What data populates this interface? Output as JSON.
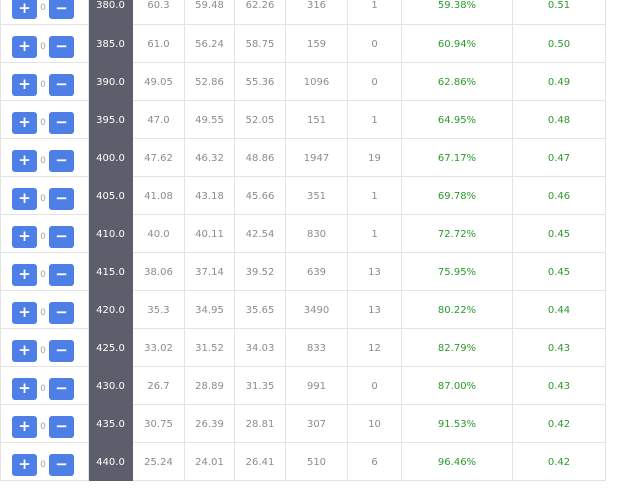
{
  "controls": {
    "plus_symbol": "+",
    "minus_symbol": "−"
  },
  "rows": [
    {
      "qty": "0",
      "strike": "380.0",
      "c1": "60.3",
      "c2": "59.48",
      "c3": "62.26",
      "c4": "316",
      "c5": "1",
      "pct": "59.38%",
      "val": "0.51"
    },
    {
      "qty": "0",
      "strike": "385.0",
      "c1": "61.0",
      "c2": "56.24",
      "c3": "58.75",
      "c4": "159",
      "c5": "0",
      "pct": "60.94%",
      "val": "0.50"
    },
    {
      "qty": "0",
      "strike": "390.0",
      "c1": "49.05",
      "c2": "52.86",
      "c3": "55.36",
      "c4": "1096",
      "c5": "0",
      "pct": "62.86%",
      "val": "0.49"
    },
    {
      "qty": "0",
      "strike": "395.0",
      "c1": "47.0",
      "c2": "49.55",
      "c3": "52.05",
      "c4": "151",
      "c5": "1",
      "pct": "64.95%",
      "val": "0.48"
    },
    {
      "qty": "0",
      "strike": "400.0",
      "c1": "47.62",
      "c2": "46.32",
      "c3": "48.86",
      "c4": "1947",
      "c5": "19",
      "pct": "67.17%",
      "val": "0.47"
    },
    {
      "qty": "0",
      "strike": "405.0",
      "c1": "41.08",
      "c2": "43.18",
      "c3": "45.66",
      "c4": "351",
      "c5": "1",
      "pct": "69.78%",
      "val": "0.46"
    },
    {
      "qty": "0",
      "strike": "410.0",
      "c1": "40.0",
      "c2": "40.11",
      "c3": "42.54",
      "c4": "830",
      "c5": "1",
      "pct": "72.72%",
      "val": "0.45"
    },
    {
      "qty": "0",
      "strike": "415.0",
      "c1": "38.06",
      "c2": "37.14",
      "c3": "39.52",
      "c4": "639",
      "c5": "13",
      "pct": "75.95%",
      "val": "0.45"
    },
    {
      "qty": "0",
      "strike": "420.0",
      "c1": "35.3",
      "c2": "34.95",
      "c3": "35.65",
      "c4": "3490",
      "c5": "13",
      "pct": "80.22%",
      "val": "0.44"
    },
    {
      "qty": "0",
      "strike": "425.0",
      "c1": "33.02",
      "c2": "31.52",
      "c3": "34.03",
      "c4": "833",
      "c5": "12",
      "pct": "82.79%",
      "val": "0.43"
    },
    {
      "qty": "0",
      "strike": "430.0",
      "c1": "26.7",
      "c2": "28.89",
      "c3": "31.35",
      "c4": "991",
      "c5": "0",
      "pct": "87.00%",
      "val": "0.43"
    },
    {
      "qty": "0",
      "strike": "435.0",
      "c1": "30.75",
      "c2": "26.39",
      "c3": "28.81",
      "c4": "307",
      "c5": "10",
      "pct": "91.53%",
      "val": "0.42"
    },
    {
      "qty": "0",
      "strike": "440.0",
      "c1": "25.24",
      "c2": "24.01",
      "c3": "26.41",
      "c4": "510",
      "c5": "6",
      "pct": "96.46%",
      "val": "0.42"
    }
  ]
}
